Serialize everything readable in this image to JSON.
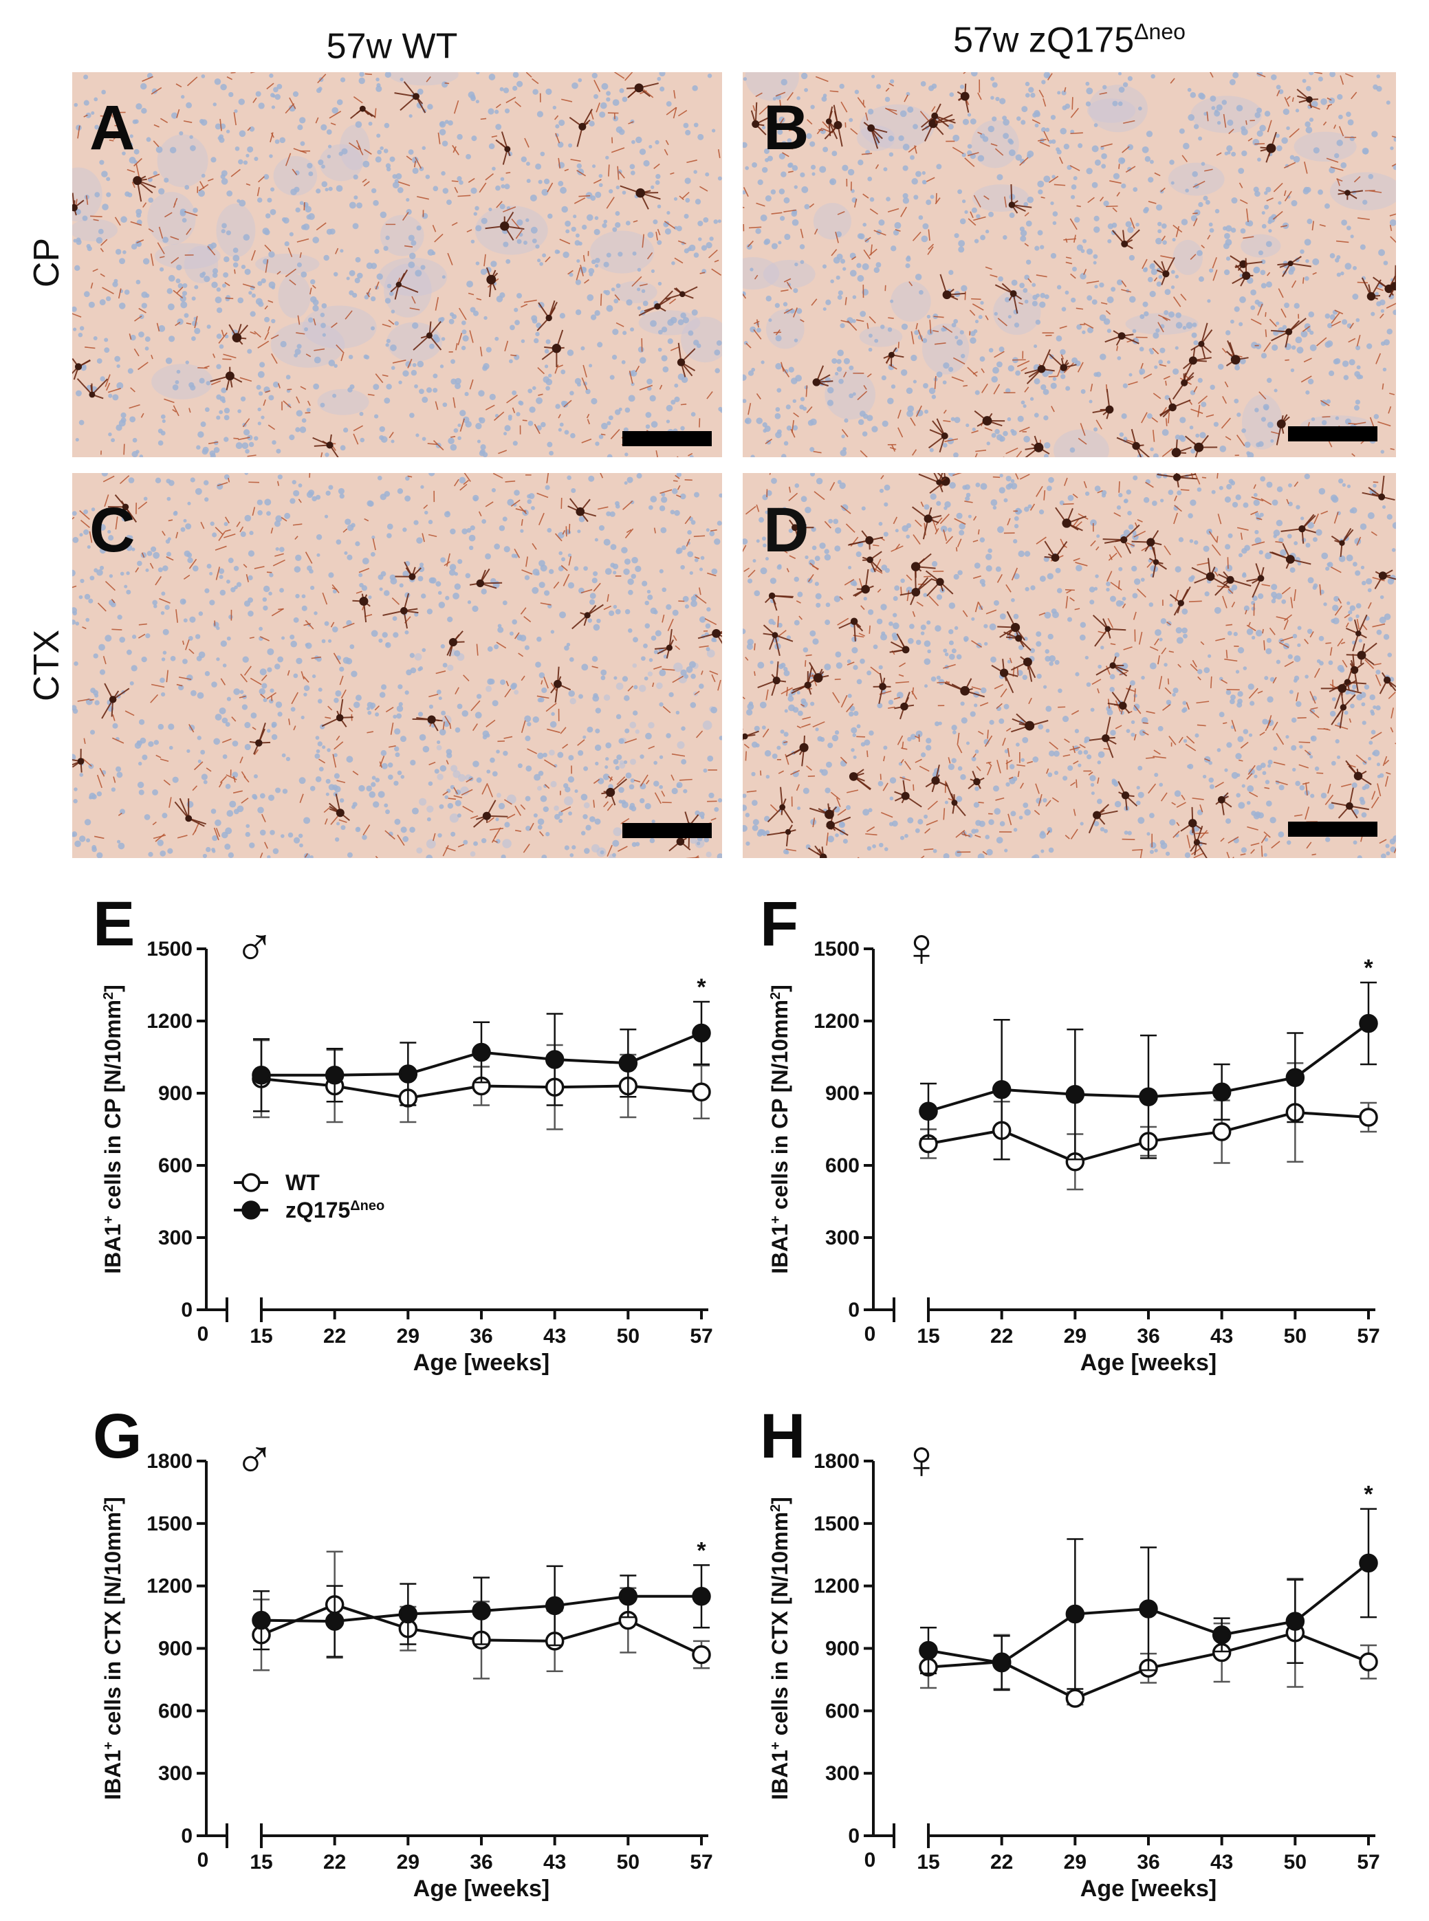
{
  "columns": [
    "57w WT",
    "57w zQ175"
  ],
  "columns_sup": [
    "",
    "Δneo"
  ],
  "rows": [
    "CP",
    "CTX"
  ],
  "micrographs": [
    {
      "letter": "A",
      "tone": "light"
    },
    {
      "letter": "B",
      "tone": "medium"
    },
    {
      "letter": "C",
      "tone": "light"
    },
    {
      "letter": "D",
      "tone": "dense"
    }
  ],
  "legend": {
    "wt": "WT",
    "zq_base": "zQ175",
    "zq_sup": "Δneo"
  },
  "colors": {
    "line": "#111111",
    "tissue": "#eccfc0",
    "nucleus": "#9fb3d4",
    "process": "#b5532f"
  },
  "chart_data": [
    {
      "type": "line",
      "letter": "E",
      "sex": "♂",
      "ylabel": "IBA1+ cells in CP [N/10mm2]",
      "ylabel_parts": [
        "IBA1",
        "+",
        " cells in CP [N/10mm",
        "2",
        "]"
      ],
      "xlabel": "Age [weeks]",
      "x": [
        15,
        22,
        29,
        36,
        43,
        50,
        57
      ],
      "xticks": [
        "0",
        "15",
        "22",
        "29",
        "36",
        "43",
        "50",
        "57"
      ],
      "ylim": [
        0,
        1500
      ],
      "yticks": [
        0,
        300,
        600,
        900,
        1200,
        1500
      ],
      "series": [
        {
          "name": "WT",
          "values": [
            960,
            930,
            880,
            930,
            925,
            930,
            905
          ],
          "err": [
            160,
            150,
            100,
            80,
            175,
            130,
            110
          ],
          "marker": "open"
        },
        {
          "name": "zQ175Δneo",
          "values": [
            975,
            975,
            980,
            1070,
            1040,
            1025,
            1150
          ],
          "err": [
            150,
            110,
            130,
            125,
            190,
            140,
            130
          ],
          "marker": "filled"
        }
      ],
      "annotations": [
        {
          "x": 57,
          "text": "*"
        }
      ],
      "show_legend": true
    },
    {
      "type": "line",
      "letter": "F",
      "sex": "♀",
      "ylabel": "IBA1+ cells in CP [N/10mm2]",
      "ylabel_parts": [
        "IBA1",
        "+",
        " cells in CP [N/10mm",
        "2",
        "]"
      ],
      "xlabel": "Age [weeks]",
      "x": [
        15,
        22,
        29,
        36,
        43,
        50,
        57
      ],
      "xticks": [
        "0",
        "15",
        "22",
        "29",
        "36",
        "43",
        "50",
        "57"
      ],
      "ylim": [
        0,
        1500
      ],
      "yticks": [
        0,
        300,
        600,
        900,
        1200,
        1500
      ],
      "series": [
        {
          "name": "WT",
          "values": [
            690,
            745,
            615,
            700,
            740,
            820,
            800
          ],
          "err": [
            60,
            120,
            115,
            60,
            130,
            205,
            60
          ],
          "marker": "open"
        },
        {
          "name": "zQ175Δneo",
          "values": [
            825,
            915,
            895,
            885,
            905,
            965,
            1190
          ],
          "err": [
            115,
            290,
            270,
            255,
            115,
            185,
            170
          ],
          "marker": "filled"
        }
      ],
      "annotations": [
        {
          "x": 57,
          "text": "*"
        }
      ],
      "show_legend": false
    },
    {
      "type": "line",
      "letter": "G",
      "sex": "♂",
      "ylabel": "IBA1+ cells in CTX [N/10mm2]",
      "ylabel_parts": [
        "IBA1",
        "+",
        " cells in CTX [N/10mm",
        "2",
        "]"
      ],
      "xlabel": "Age [weeks]",
      "x": [
        15,
        22,
        29,
        36,
        43,
        50,
        57
      ],
      "xticks": [
        "0",
        "15",
        "22",
        "29",
        "36",
        "43",
        "50",
        "57"
      ],
      "ylim": [
        0,
        1800
      ],
      "yticks": [
        0,
        300,
        600,
        900,
        1200,
        1500,
        1800
      ],
      "series": [
        {
          "name": "WT",
          "values": [
            965,
            1110,
            995,
            940,
            935,
            1035,
            870
          ],
          "err": [
            170,
            255,
            105,
            185,
            145,
            155,
            65
          ],
          "marker": "open"
        },
        {
          "name": "zQ175Δneo",
          "values": [
            1035,
            1030,
            1065,
            1080,
            1105,
            1150,
            1150
          ],
          "err": [
            140,
            170,
            145,
            160,
            190,
            100,
            150
          ],
          "marker": "filled"
        }
      ],
      "annotations": [
        {
          "x": 57,
          "text": "*"
        }
      ],
      "show_legend": false
    },
    {
      "type": "line",
      "letter": "H",
      "sex": "♀",
      "ylabel": "IBA1+ cells in CTX [N/10mm2]",
      "ylabel_parts": [
        "IBA1",
        "+",
        " cells in CTX [N/10mm",
        "2",
        "]"
      ],
      "xlabel": "Age [weeks]",
      "x": [
        15,
        22,
        29,
        36,
        43,
        50,
        57
      ],
      "xticks": [
        "0",
        "15",
        "22",
        "29",
        "36",
        "43",
        "50",
        "57"
      ],
      "ylim": [
        0,
        1800
      ],
      "yticks": [
        0,
        300,
        600,
        900,
        1200,
        1500,
        1800
      ],
      "series": [
        {
          "name": "WT",
          "values": [
            810,
            835,
            660,
            805,
            880,
            975,
            835
          ],
          "err": [
            100,
            130,
            30,
            70,
            140,
            260,
            80
          ],
          "marker": "open"
        },
        {
          "name": "zQ175Δneo",
          "values": [
            890,
            830,
            1065,
            1090,
            965,
            1030,
            1310
          ],
          "err": [
            110,
            130,
            360,
            295,
            80,
            200,
            260
          ],
          "marker": "filled"
        }
      ],
      "annotations": [
        {
          "x": 57,
          "text": "*"
        }
      ],
      "show_legend": false
    }
  ]
}
